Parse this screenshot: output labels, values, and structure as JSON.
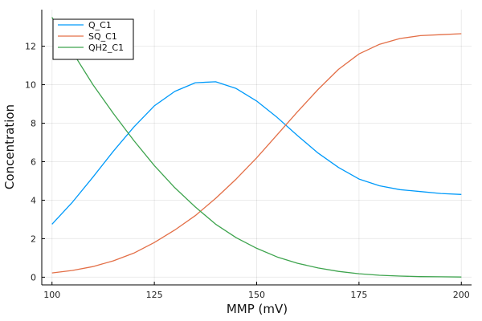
{
  "chart_data": {
    "type": "line",
    "title": "",
    "xlabel": "MMP (mV)",
    "ylabel": "Concentration",
    "xlim": [
      97.5,
      202.5
    ],
    "ylim": [
      -0.4,
      13.9
    ],
    "xticks": [
      100,
      125,
      150,
      175,
      200
    ],
    "yticks": [
      0,
      2,
      4,
      6,
      8,
      10,
      12
    ],
    "grid": true,
    "legend_position": "top-left",
    "series": [
      {
        "name": "Q_C1",
        "color": "#009AFA",
        "x": [
          100,
          105,
          110,
          115,
          120,
          125,
          130,
          135,
          140,
          145,
          150,
          155,
          160,
          165,
          170,
          175,
          180,
          185,
          190,
          195,
          200
        ],
        "y": [
          2.75,
          3.9,
          5.2,
          6.55,
          7.8,
          8.9,
          9.65,
          10.1,
          10.15,
          9.8,
          9.15,
          8.3,
          7.35,
          6.45,
          5.7,
          5.1,
          4.75,
          4.55,
          4.45,
          4.35,
          4.3
        ]
      },
      {
        "name": "SQ_C1",
        "color": "#E36F47",
        "x": [
          100,
          105,
          110,
          115,
          120,
          125,
          130,
          135,
          140,
          145,
          150,
          155,
          160,
          165,
          170,
          175,
          180,
          185,
          190,
          195,
          200
        ],
        "y": [
          0.22,
          0.35,
          0.55,
          0.85,
          1.25,
          1.8,
          2.45,
          3.2,
          4.1,
          5.1,
          6.2,
          7.4,
          8.6,
          9.75,
          10.8,
          11.6,
          12.1,
          12.4,
          12.55,
          12.6,
          12.65
        ]
      },
      {
        "name": "QH2_C1",
        "color": "#3EA44E",
        "x": [
          100,
          105,
          110,
          115,
          120,
          125,
          130,
          135,
          140,
          145,
          150,
          155,
          160,
          165,
          170,
          175,
          180,
          185,
          190,
          195,
          200
        ],
        "y": [
          13.5,
          11.7,
          10.0,
          8.5,
          7.1,
          5.8,
          4.65,
          3.65,
          2.75,
          2.05,
          1.5,
          1.05,
          0.72,
          0.48,
          0.3,
          0.18,
          0.1,
          0.06,
          0.03,
          0.02,
          0.01
        ]
      }
    ]
  }
}
